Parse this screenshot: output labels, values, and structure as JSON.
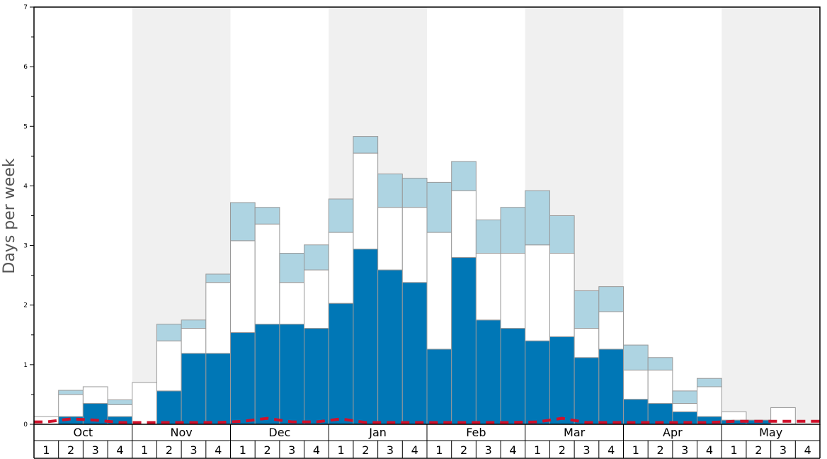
{
  "chart_data": {
    "type": "bar",
    "stacked": true,
    "title": "",
    "xlabel": "",
    "ylabel": "Days per week",
    "ylim": [
      0,
      7
    ],
    "yticks": [
      "0",
      "1",
      "2",
      "3",
      "4",
      "5",
      "6",
      "7"
    ],
    "months": [
      "Oct",
      "Nov",
      "Dec",
      "Jan",
      "Feb",
      "Mar",
      "Apr",
      "May"
    ],
    "week_labels": [
      "1",
      "2",
      "3",
      "4"
    ],
    "grid": false,
    "colors": {
      "series_1": "#0077b6",
      "series_2": "#ffffff",
      "series_3": "#aed4e2",
      "threshold_line": "#d0112b",
      "shade_band": "#f0f0f0",
      "bar_outline": "#999999"
    },
    "series": [
      {
        "name": "series_1",
        "values": [
          0.0,
          0.13,
          0.35,
          0.13,
          0.0,
          0.56,
          1.19,
          1.19,
          1.54,
          1.68,
          1.68,
          1.61,
          2.03,
          2.94,
          2.59,
          2.38,
          1.26,
          2.8,
          1.75,
          1.61,
          1.4,
          1.47,
          1.12,
          1.26,
          0.42,
          0.35,
          0.21,
          0.13,
          0.07,
          0.07,
          0.0,
          0.0
        ]
      },
      {
        "name": "series_2",
        "values": [
          0.13,
          0.37,
          0.28,
          0.2,
          0.7,
          0.84,
          0.42,
          1.19,
          1.54,
          1.68,
          0.7,
          0.98,
          1.19,
          1.61,
          1.05,
          1.26,
          1.96,
          1.12,
          1.12,
          1.26,
          1.61,
          1.4,
          0.49,
          0.63,
          0.49,
          0.56,
          0.14,
          0.5,
          0.14,
          0.0,
          0.28,
          0.0
        ]
      },
      {
        "name": "series_3",
        "values": [
          0.0,
          0.07,
          0.0,
          0.08,
          0.0,
          0.28,
          0.14,
          0.14,
          0.64,
          0.28,
          0.49,
          0.42,
          0.56,
          0.28,
          0.56,
          0.49,
          0.84,
          0.49,
          0.56,
          0.77,
          0.91,
          0.63,
          0.63,
          0.42,
          0.42,
          0.21,
          0.21,
          0.14,
          0.0,
          0.0,
          0.0,
          0.0
        ]
      }
    ],
    "threshold_line": {
      "style": "dashed",
      "values": [
        0.04,
        0.09,
        0.07,
        0.03,
        0.03,
        0.03,
        0.03,
        0.03,
        0.05,
        0.1,
        0.04,
        0.04,
        0.09,
        0.03,
        0.03,
        0.03,
        0.03,
        0.03,
        0.03,
        0.03,
        0.04,
        0.1,
        0.03,
        0.03,
        0.03,
        0.03,
        0.03,
        0.03,
        0.05,
        0.05,
        0.05,
        0.05
      ]
    }
  }
}
